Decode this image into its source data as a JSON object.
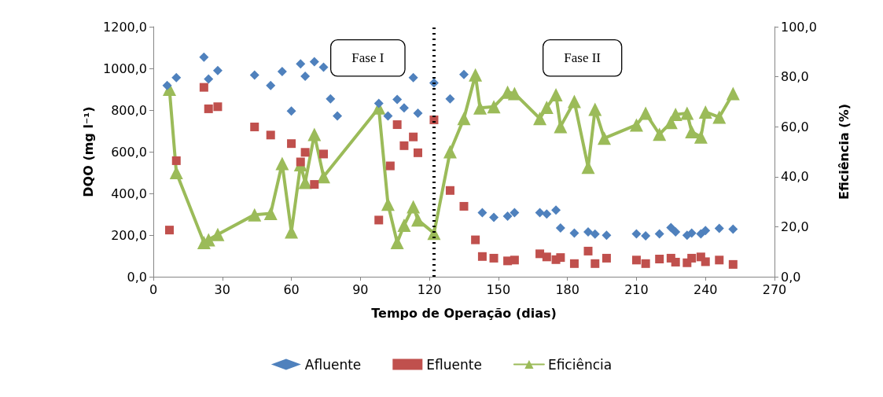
{
  "chart_data": {
    "type": "scatter",
    "xlabel": "Tempo de Operação (dias)",
    "ylabel": "DQO (mg l⁻¹)",
    "y2label": "Eficiência (%)",
    "xlim": [
      0,
      270
    ],
    "xticks": [
      0,
      30,
      60,
      90,
      120,
      150,
      180,
      210,
      240,
      270
    ],
    "ylim": [
      0,
      1200
    ],
    "yticks": [
      {
        "value": 0,
        "label": "0,0"
      },
      {
        "value": 200,
        "label": "200,0"
      },
      {
        "value": 400,
        "label": "400,0"
      },
      {
        "value": 600,
        "label": "600,0"
      },
      {
        "value": 800,
        "label": "800,0"
      },
      {
        "value": 1000,
        "label": "1000,0"
      },
      {
        "value": 1200,
        "label": "1200,0"
      }
    ],
    "y2lim": [
      0,
      100
    ],
    "y2ticks": [
      {
        "value": 0,
        "label": "0,0"
      },
      {
        "value": 20,
        "label": "20,0"
      },
      {
        "value": 40,
        "label": "40,0"
      },
      {
        "value": 60,
        "label": "60,0"
      },
      {
        "value": 80,
        "label": "80,0"
      },
      {
        "value": 100,
        "label": "100,0"
      }
    ],
    "grid": false,
    "legend": "bottom",
    "series": [
      {
        "name": "Afluente",
        "marker": "diamond",
        "color": "#4f81bd",
        "x": [
          6,
          10,
          22,
          24,
          28,
          44,
          51,
          56,
          60,
          64,
          66,
          70,
          74,
          77,
          80,
          98,
          102,
          106,
          109,
          113,
          115,
          122,
          129,
          135,
          143,
          148,
          154,
          157,
          168,
          171,
          175,
          177,
          183,
          189,
          192,
          197,
          210,
          214,
          220,
          225,
          227,
          232,
          234,
          238,
          240,
          246,
          252
        ],
        "values": [
          918,
          956,
          1054,
          949,
          990,
          968,
          918,
          985,
          795,
          1022,
          962,
          1032,
          1006,
          854,
          772,
          832,
          772,
          851,
          810,
          956,
          785,
          930,
          854,
          971,
          308,
          285,
          291,
          308,
          308,
          301,
          320,
          234,
          209,
          215,
          205,
          199,
          206,
          196,
          206,
          236,
          215,
          199,
          209,
          206,
          222,
          232,
          228
        ]
      },
      {
        "name": "Efluente",
        "marker": "square",
        "color": "#c0504d",
        "x": [
          7,
          10,
          22,
          24,
          28,
          44,
          51,
          60,
          64,
          66,
          70,
          74,
          98,
          103,
          106,
          109,
          113,
          115,
          122,
          129,
          135,
          140,
          143,
          148,
          154,
          157,
          168,
          171,
          175,
          177,
          183,
          189,
          192,
          197,
          210,
          214,
          220,
          225,
          227,
          232,
          234,
          238,
          240,
          246,
          252
        ],
        "values": [
          224,
          557,
          909,
          806,
          816,
          719,
          680,
          639,
          551,
          597,
          443,
          589,
          272,
          532,
          730,
          629,
          671,
          595,
          753,
          414,
          338,
          177,
          97,
          89,
          76,
          80,
          110,
          95,
          82,
          92,
          63,
          123,
          63,
          89,
          80,
          63,
          85,
          89,
          70,
          67,
          89,
          95,
          72,
          80,
          59
        ]
      },
      {
        "name": "Eficiência",
        "type": "line",
        "marker": "triangle",
        "axis": "y2",
        "color": "#9bbb59",
        "x": [
          7,
          10,
          22,
          24,
          28,
          44,
          51,
          56,
          60,
          64,
          66,
          70,
          74,
          98,
          102,
          106,
          109,
          113,
          115,
          122,
          129,
          135,
          140,
          142,
          148,
          154,
          157,
          168,
          171,
          175,
          177,
          183,
          189,
          192,
          196,
          210,
          214,
          220,
          225,
          227,
          232,
          234,
          238,
          240,
          246,
          252
        ],
        "values": [
          75,
          41.7,
          13.7,
          14.8,
          16.9,
          24.8,
          25.3,
          45.3,
          17.9,
          44.8,
          37.7,
          56.9,
          40,
          67.5,
          29,
          13.7,
          20.6,
          28,
          22.7,
          17.4,
          50,
          63.3,
          80.7,
          67.5,
          68,
          73.8,
          73.3,
          63.3,
          67.8,
          72.8,
          60.1,
          70.1,
          43.8,
          67,
          55.4,
          60.7,
          65.4,
          57,
          61.7,
          64.9,
          65.4,
          58,
          55.9,
          65.9,
          63.8,
          73.3
        ]
      }
    ],
    "ref_lines": [
      {
        "axis": "x",
        "value": 122,
        "color": "#000000",
        "line_style": "dotted"
      }
    ],
    "annotations": [
      "Fase I",
      "Fase II"
    ]
  }
}
